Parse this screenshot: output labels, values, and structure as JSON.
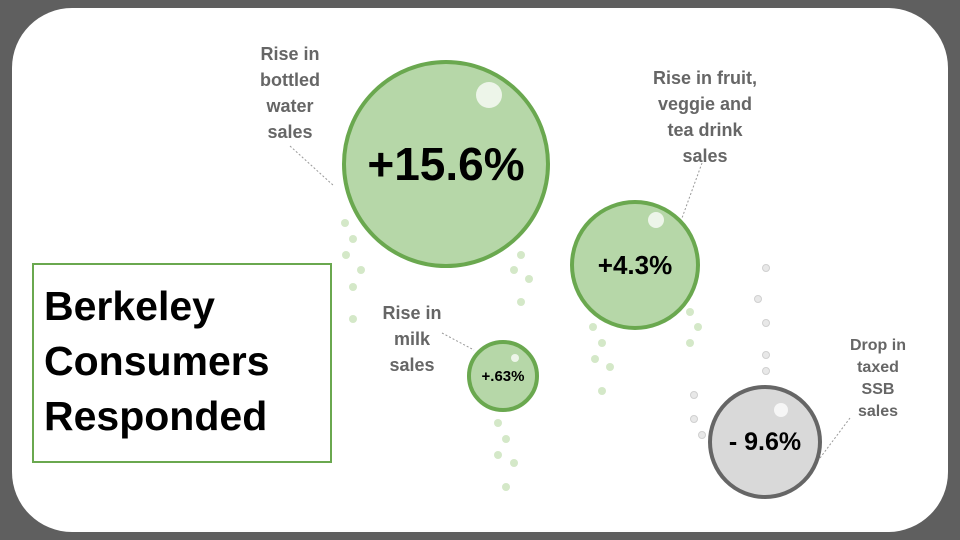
{
  "title": {
    "lines": [
      "Berkeley",
      "Consumers",
      "Responded"
    ]
  },
  "stats": [
    {
      "value": "+15.6%",
      "label_lines": [
        "Rise in",
        "bottled",
        "water",
        "sales"
      ],
      "color": "#b6d7a8"
    },
    {
      "value": "+4.3%",
      "label_lines": [
        "Rise in fruit,",
        "veggie and",
        "tea drink",
        "sales"
      ],
      "color": "#b6d7a8"
    },
    {
      "value": "+.63%",
      "label_lines": [
        "Rise in",
        "milk",
        "sales"
      ],
      "color": "#b6d7a8"
    },
    {
      "value": "- 9.6%",
      "label_lines": [
        "Drop in",
        "taxed",
        "SSB",
        "sales"
      ],
      "color": "#d9d9d9"
    }
  ],
  "colors": {
    "green_fill": "#b6d7a8",
    "green_border": "#6aa84f",
    "gray_fill": "#d9d9d9",
    "gray_border": "#666666",
    "label_text": "#666666"
  }
}
